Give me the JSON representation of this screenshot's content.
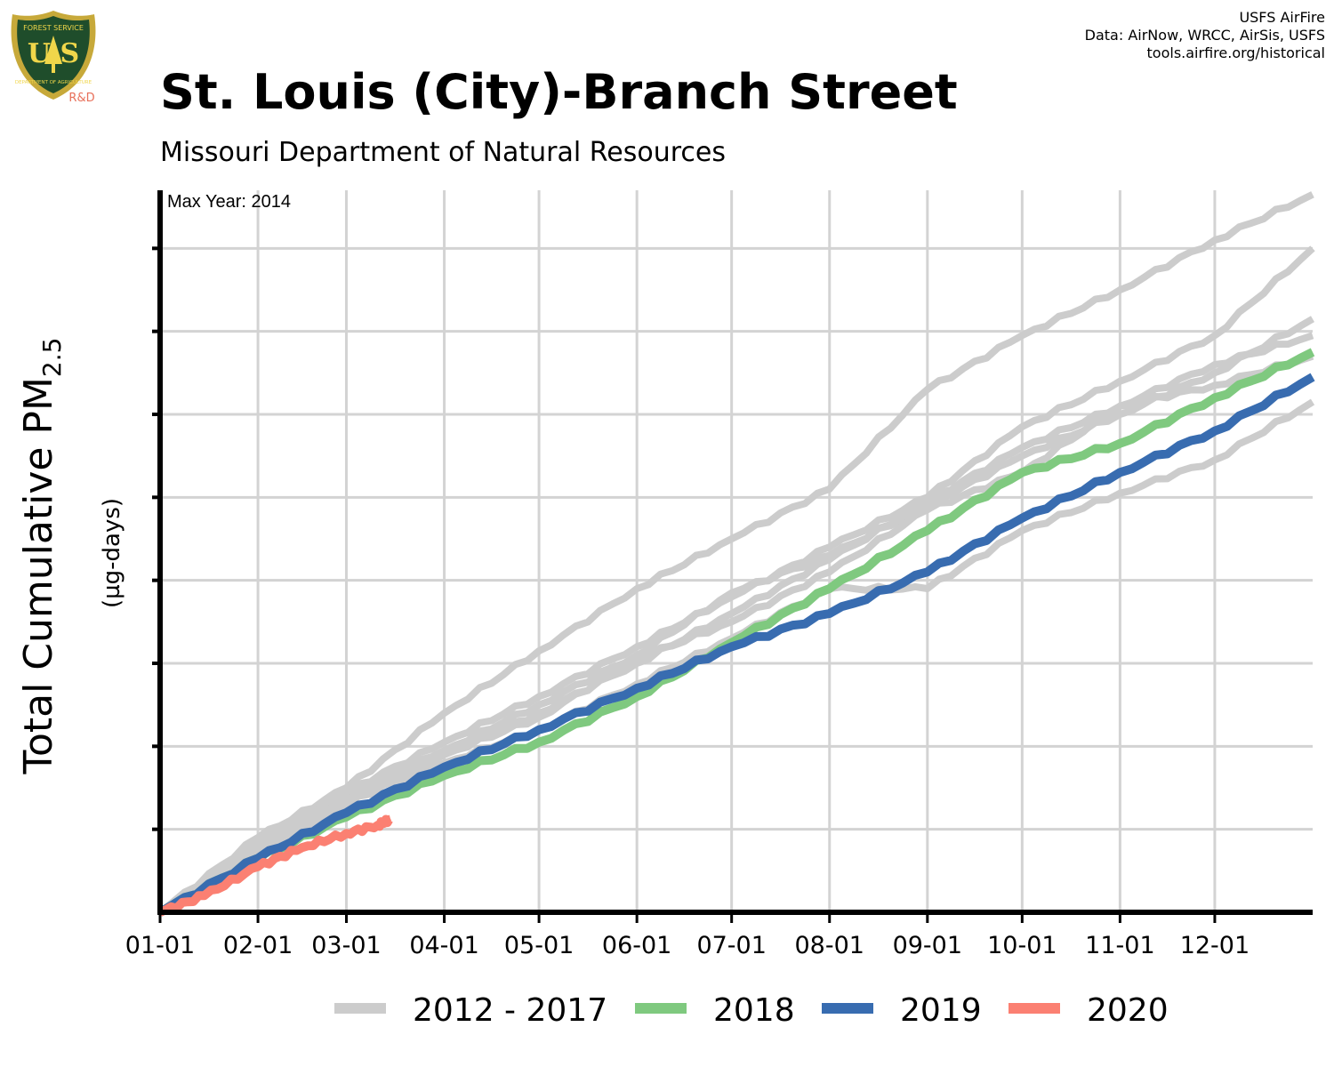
{
  "logo": {
    "top_text": "FOREST SERVICE",
    "letters": "U S",
    "bottom_text": "DEPARTMENT OF AGRICULTURE",
    "rd": "R&D"
  },
  "credits": [
    "USFS AirFire",
    "Data: AirNow, WRCC, AirSis, USFS",
    "tools.airfire.org/historical"
  ],
  "title": "St. Louis (City)-Branch Street",
  "subtitle": "Missouri Department of Natural Resources",
  "annotation": "Max Year: 2014",
  "colors": {
    "grey": "#cccccc",
    "green": "#7fc97f",
    "blue": "#386cb0",
    "red": "#fb8072",
    "grid": "#d3d3d3",
    "axis": "#000000"
  },
  "chart_data": {
    "type": "line",
    "ylabel_main": "Total Cumulative PM",
    "ylabel_sub": "2.5",
    "ylabel_units": "(µg-days)",
    "x_ticks": [
      "01-01",
      "02-01",
      "03-01",
      "04-01",
      "05-01",
      "06-01",
      "07-01",
      "08-01",
      "09-01",
      "10-01",
      "11-01",
      "12-01"
    ],
    "x_tick_doy": [
      1,
      32,
      60,
      91,
      121,
      152,
      182,
      213,
      244,
      274,
      305,
      335
    ],
    "xlim": [
      1,
      366
    ],
    "ylim": [
      0,
      8.7
    ],
    "y_gridlines": 8,
    "legend": [
      "2012 - 2017",
      "2018",
      "2019",
      "2020"
    ],
    "series": [
      {
        "name": "2012 - 2017",
        "color_key": "grey",
        "x": [
          1,
          32,
          60,
          91,
          121,
          152,
          182,
          213,
          244,
          274,
          305,
          335,
          366
        ],
        "values": [
          0,
          0.9,
          1.5,
          2.4,
          3.15,
          3.9,
          4.5,
          5.1,
          6.3,
          6.95,
          7.5,
          8.1,
          8.65
        ]
      },
      {
        "name": "2012 - 2017",
        "color_key": "grey",
        "x": [
          1,
          32,
          60,
          91,
          121,
          152,
          182,
          213,
          244,
          274,
          305,
          335,
          366
        ],
        "values": [
          0,
          0.85,
          1.45,
          2.05,
          2.6,
          3.2,
          3.8,
          4.4,
          5.0,
          5.85,
          6.4,
          6.95,
          8.0
        ]
      },
      {
        "name": "2012 - 2017",
        "color_key": "grey",
        "x": [
          1,
          32,
          60,
          91,
          121,
          152,
          182,
          213,
          244,
          274,
          305,
          335,
          366
        ],
        "values": [
          0,
          0.75,
          1.4,
          1.95,
          2.5,
          3.1,
          3.85,
          4.3,
          4.9,
          5.5,
          6.0,
          6.5,
          7.15
        ]
      },
      {
        "name": "2012 - 2017",
        "color_key": "grey",
        "x": [
          1,
          32,
          60,
          91,
          121,
          152,
          182,
          213,
          244,
          274,
          305,
          335,
          366
        ],
        "values": [
          0,
          0.8,
          1.35,
          1.9,
          2.4,
          3.0,
          3.6,
          4.25,
          4.95,
          5.6,
          6.1,
          6.6,
          6.95
        ]
      },
      {
        "name": "2012 - 2017",
        "color_key": "grey",
        "x": [
          1,
          32,
          60,
          91,
          121,
          152,
          182,
          213,
          244,
          274,
          305,
          335,
          366
        ],
        "values": [
          0,
          0.7,
          1.3,
          1.9,
          2.35,
          3.05,
          3.5,
          4.1,
          4.85,
          5.3,
          6.1,
          6.35,
          6.7
        ]
      },
      {
        "name": "2012 - 2017",
        "color_key": "grey",
        "x": [
          1,
          32,
          60,
          91,
          121,
          152,
          182,
          213,
          244,
          274,
          305,
          335,
          366
        ],
        "values": [
          0,
          0.75,
          1.35,
          1.8,
          2.2,
          2.75,
          3.3,
          3.9,
          3.9,
          4.6,
          5.05,
          5.45,
          6.15
        ]
      },
      {
        "name": "2018",
        "color_key": "green",
        "x": [
          1,
          32,
          60,
          91,
          121,
          152,
          182,
          213,
          244,
          274,
          305,
          335,
          366
        ],
        "values": [
          0,
          0.65,
          1.15,
          1.65,
          2.05,
          2.6,
          3.25,
          3.9,
          4.6,
          5.3,
          5.65,
          6.2,
          6.75
        ]
      },
      {
        "name": "2019",
        "color_key": "blue",
        "x": [
          1,
          32,
          60,
          91,
          121,
          152,
          182,
          213,
          244,
          274,
          305,
          335,
          366
        ],
        "values": [
          0,
          0.65,
          1.2,
          1.75,
          2.2,
          2.7,
          3.2,
          3.6,
          4.1,
          4.75,
          5.3,
          5.8,
          6.45
        ]
      },
      {
        "name": "2020",
        "color_key": "red",
        "x": [
          1,
          15,
          32,
          46,
          60,
          70,
          74
        ],
        "values": [
          0,
          0.2,
          0.55,
          0.78,
          0.95,
          1.05,
          1.12
        ]
      }
    ]
  }
}
